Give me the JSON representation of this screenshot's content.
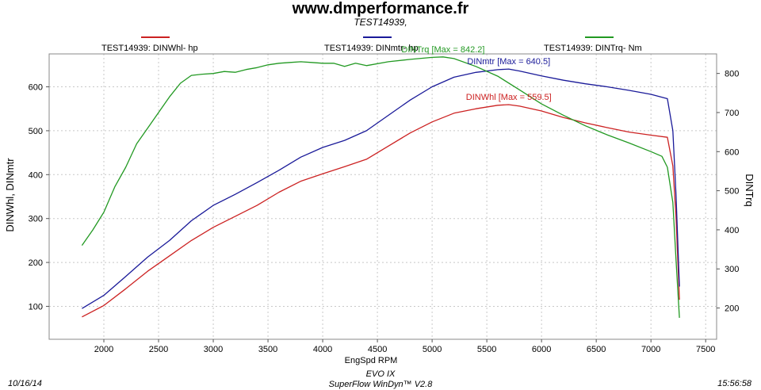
{
  "header": {
    "site": "www.dmperformance.fr",
    "test": "TEST14939,"
  },
  "legend": [
    {
      "label": "TEST14939: DINWhl-  hp",
      "color": "#cc2222"
    },
    {
      "label": "TEST14939: DINmtr-  hp",
      "color": "#1a1a99"
    },
    {
      "label": "TEST14939: DINTrq-  Nm",
      "color": "#229922"
    }
  ],
  "footer": {
    "date": "10/16/14",
    "vehicle": "EVO IX",
    "software": "SuperFlow WinDyn™ V2.8",
    "time": "15:56:58"
  },
  "chart_data": {
    "type": "line",
    "xlabel": "EngSpd  RPM",
    "ylabel_left": "DINWhl, DINmtr",
    "ylabel_right": "DINTrq",
    "xlim": [
      1500,
      7600
    ],
    "ylim_left": [
      25,
      675
    ],
    "ylim_right": [
      120,
      850
    ],
    "x_ticks": [
      2000,
      2500,
      3000,
      3500,
      4000,
      4500,
      5000,
      5500,
      6000,
      6500,
      7000,
      7500
    ],
    "y_left_ticks": [
      100,
      200,
      300,
      400,
      500,
      600
    ],
    "y_right_ticks": [
      200,
      300,
      400,
      500,
      600,
      700,
      800
    ],
    "grid": true,
    "series": [
      {
        "name": "DINWhl",
        "axis": "left",
        "color": "#cc2222",
        "annotation": "DINWhl [Max = 559.5]",
        "x": [
          1800,
          2000,
          2200,
          2400,
          2600,
          2800,
          3000,
          3200,
          3400,
          3600,
          3800,
          4000,
          4200,
          4400,
          4600,
          4800,
          5000,
          5200,
          5400,
          5600,
          5700,
          5800,
          6000,
          6200,
          6400,
          6600,
          6800,
          7000,
          7150,
          7200,
          7230,
          7260
        ],
        "y": [
          76,
          102,
          140,
          180,
          215,
          250,
          280,
          305,
          330,
          360,
          385,
          402,
          418,
          435,
          465,
          495,
          520,
          540,
          550,
          558,
          559.5,
          556,
          545,
          530,
          518,
          507,
          497,
          490,
          485,
          420,
          300,
          115
        ]
      },
      {
        "name": "DINmtr",
        "axis": "left",
        "color": "#1a1a99",
        "annotation": "DINmtr [Max = 640.5]",
        "x": [
          1800,
          2000,
          2200,
          2400,
          2600,
          2800,
          3000,
          3200,
          3400,
          3600,
          3800,
          4000,
          4200,
          4400,
          4600,
          4800,
          5000,
          5200,
          5400,
          5600,
          5700,
          5800,
          6000,
          6200,
          6400,
          6600,
          6800,
          7000,
          7150,
          7200,
          7230,
          7260
        ],
        "y": [
          95,
          125,
          168,
          212,
          250,
          295,
          330,
          355,
          382,
          410,
          440,
          462,
          478,
          500,
          535,
          570,
          600,
          622,
          633,
          639,
          640.5,
          636,
          625,
          615,
          607,
          600,
          592,
          583,
          573,
          500,
          350,
          145
        ]
      },
      {
        "name": "DINTrq",
        "axis": "right",
        "color": "#229922",
        "annotation": "DINTrq [Max = 842.2]",
        "x": [
          1800,
          1900,
          2000,
          2100,
          2200,
          2300,
          2400,
          2500,
          2600,
          2700,
          2800,
          2900,
          3000,
          3100,
          3200,
          3300,
          3400,
          3500,
          3600,
          3700,
          3800,
          3900,
          4000,
          4100,
          4200,
          4300,
          4400,
          4600,
          4800,
          5000,
          5100,
          5200,
          5400,
          5600,
          5800,
          6000,
          6200,
          6400,
          6600,
          6800,
          7000,
          7100,
          7150,
          7200,
          7230,
          7260
        ],
        "y": [
          360,
          400,
          445,
          510,
          560,
          620,
          660,
          700,
          740,
          775,
          795,
          798,
          800,
          805,
          803,
          810,
          815,
          822,
          826,
          828,
          830,
          828,
          826,
          826,
          818,
          826,
          820,
          830,
          836,
          841,
          842.2,
          838,
          818,
          793,
          758,
          722,
          693,
          666,
          643,
          622,
          600,
          588,
          560,
          470,
          320,
          175
        ]
      }
    ]
  }
}
